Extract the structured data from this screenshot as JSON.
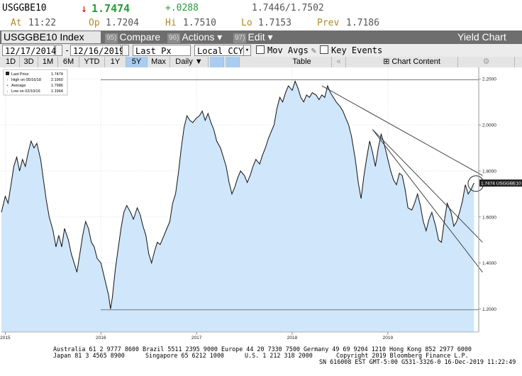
{
  "quote": {
    "ticker": "USGGBE10",
    "arrow": "↓",
    "last": "1.7474",
    "change": "+.0288",
    "bid_ask": "1.7446/1.7502",
    "at_label": "At",
    "time": "11:22",
    "op_label": "Op",
    "open": "1.7204",
    "hi_label": "Hi",
    "high": "1.7510",
    "lo_label": "Lo",
    "low": "1.7153",
    "prev_label": "Prev",
    "prev": "1.7186"
  },
  "titlebar": {
    "index_name": "USGGBE10 Index",
    "compare_num": "95)",
    "compare": "Compare",
    "actions_num": "96)",
    "actions": "Actions ▾",
    "edit_num": "97)",
    "edit": "Edit ▾",
    "chart_title": "Yield Chart"
  },
  "controls": {
    "start_date": "12/17/2014",
    "dash": "-",
    "end_date": "12/16/2019",
    "price_field": "Last Px",
    "currency": "Local CCY",
    "mov_avgs": "Mov Avgs",
    "key_events": "Key Events"
  },
  "periods": {
    "items": [
      "1D",
      "3D",
      "1M",
      "6M",
      "YTD",
      "1Y",
      "5Y",
      "Max",
      "Daily ▼"
    ],
    "active": "5Y",
    "table": "Table",
    "chart_content": "Chart Content"
  },
  "legend": {
    "last_price": "Last Price",
    "last_price_val": "1.7474",
    "high": "High on 05/16/18",
    "high_val": "2.1960",
    "average": "Average",
    "average_val": "1.7986",
    "low": "Low on 02/10/16",
    "low_val": "1.1964"
  },
  "last_tag": "1.7474 USGGBE10",
  "colors": {
    "area_fill": "#cfe6fb",
    "line": "#111111",
    "accent_red": "#e00000",
    "accent_green": "#2a9a3a",
    "header_gray": "#6e6e6e",
    "active_blue": "#a9cdf0"
  },
  "chart_data": {
    "type": "area",
    "series": [
      {
        "values": [
          [
            2014.96,
            1.62
          ],
          [
            2015.0,
            1.69
          ],
          [
            2015.03,
            1.66
          ],
          [
            2015.06,
            1.74
          ],
          [
            2015.09,
            1.82
          ],
          [
            2015.12,
            1.86
          ],
          [
            2015.15,
            1.8
          ],
          [
            2015.18,
            1.85
          ],
          [
            2015.21,
            1.82
          ],
          [
            2015.24,
            1.88
          ],
          [
            2015.27,
            1.93
          ],
          [
            2015.3,
            1.9
          ],
          [
            2015.33,
            1.92
          ],
          [
            2015.37,
            1.85
          ],
          [
            2015.4,
            1.76
          ],
          [
            2015.43,
            1.67
          ],
          [
            2015.46,
            1.6
          ],
          [
            2015.5,
            1.54
          ],
          [
            2015.53,
            1.47
          ],
          [
            2015.56,
            1.52
          ],
          [
            2015.59,
            1.47
          ],
          [
            2015.62,
            1.55
          ],
          [
            2015.66,
            1.5
          ],
          [
            2015.69,
            1.44
          ],
          [
            2015.72,
            1.4
          ],
          [
            2015.75,
            1.36
          ],
          [
            2015.78,
            1.44
          ],
          [
            2015.81,
            1.52
          ],
          [
            2015.84,
            1.58
          ],
          [
            2015.87,
            1.55
          ],
          [
            2015.9,
            1.49
          ],
          [
            2015.93,
            1.47
          ],
          [
            2015.96,
            1.42
          ],
          [
            2016.0,
            1.4
          ],
          [
            2016.04,
            1.33
          ],
          [
            2016.08,
            1.26
          ],
          [
            2016.1,
            1.2
          ],
          [
            2016.12,
            1.25
          ],
          [
            2016.15,
            1.37
          ],
          [
            2016.18,
            1.46
          ],
          [
            2016.21,
            1.55
          ],
          [
            2016.24,
            1.62
          ],
          [
            2016.27,
            1.65
          ],
          [
            2016.31,
            1.62
          ],
          [
            2016.34,
            1.59
          ],
          [
            2016.38,
            1.64
          ],
          [
            2016.41,
            1.61
          ],
          [
            2016.44,
            1.56
          ],
          [
            2016.47,
            1.52
          ],
          [
            2016.5,
            1.44
          ],
          [
            2016.53,
            1.4
          ],
          [
            2016.56,
            1.45
          ],
          [
            2016.59,
            1.49
          ],
          [
            2016.62,
            1.48
          ],
          [
            2016.66,
            1.52
          ],
          [
            2016.69,
            1.55
          ],
          [
            2016.72,
            1.58
          ],
          [
            2016.75,
            1.66
          ],
          [
            2016.78,
            1.7
          ],
          [
            2016.81,
            1.79
          ],
          [
            2016.84,
            1.9
          ],
          [
            2016.87,
            1.99
          ],
          [
            2016.9,
            2.04
          ],
          [
            2016.93,
            2.02
          ],
          [
            2016.96,
            2.01
          ],
          [
            2017.0,
            2.03
          ],
          [
            2017.03,
            2.04
          ],
          [
            2017.06,
            2.06
          ],
          [
            2017.09,
            2.02
          ],
          [
            2017.12,
            2.05
          ],
          [
            2017.15,
            2.01
          ],
          [
            2017.18,
            1.98
          ],
          [
            2017.21,
            1.93
          ],
          [
            2017.25,
            1.9
          ],
          [
            2017.28,
            1.86
          ],
          [
            2017.31,
            1.82
          ],
          [
            2017.34,
            1.75
          ],
          [
            2017.37,
            1.7
          ],
          [
            2017.4,
            1.73
          ],
          [
            2017.43,
            1.77
          ],
          [
            2017.46,
            1.8
          ],
          [
            2017.5,
            1.78
          ],
          [
            2017.53,
            1.75
          ],
          [
            2017.56,
            1.78
          ],
          [
            2017.59,
            1.82
          ],
          [
            2017.62,
            1.85
          ],
          [
            2017.66,
            1.83
          ],
          [
            2017.69,
            1.87
          ],
          [
            2017.72,
            1.9
          ],
          [
            2017.75,
            1.94
          ],
          [
            2017.78,
            1.97
          ],
          [
            2017.81,
            2.0
          ],
          [
            2017.84,
            2.07
          ],
          [
            2017.87,
            2.12
          ],
          [
            2017.9,
            2.1
          ],
          [
            2017.93,
            2.14
          ],
          [
            2017.96,
            2.17
          ],
          [
            2018.0,
            2.15
          ],
          [
            2018.03,
            2.19
          ],
          [
            2018.06,
            2.16
          ],
          [
            2018.09,
            2.12
          ],
          [
            2018.12,
            2.1
          ],
          [
            2018.15,
            2.13
          ],
          [
            2018.18,
            2.12
          ],
          [
            2018.21,
            2.14
          ],
          [
            2018.25,
            2.13
          ],
          [
            2018.28,
            2.11
          ],
          [
            2018.31,
            2.13
          ],
          [
            2018.34,
            2.12
          ],
          [
            2018.37,
            2.17
          ],
          [
            2018.4,
            2.14
          ],
          [
            2018.43,
            2.12
          ],
          [
            2018.46,
            2.1
          ],
          [
            2018.5,
            2.08
          ],
          [
            2018.53,
            2.06
          ],
          [
            2018.56,
            2.03
          ],
          [
            2018.59,
            2.0
          ],
          [
            2018.62,
            1.95
          ],
          [
            2018.66,
            1.85
          ],
          [
            2018.69,
            1.75
          ],
          [
            2018.72,
            1.68
          ],
          [
            2018.75,
            1.78
          ],
          [
            2018.78,
            1.86
          ],
          [
            2018.81,
            1.93
          ],
          [
            2018.84,
            1.88
          ],
          [
            2018.87,
            1.82
          ],
          [
            2018.9,
            1.9
          ],
          [
            2018.93,
            1.96
          ],
          [
            2018.96,
            1.92
          ],
          [
            2019.0,
            1.85
          ],
          [
            2019.03,
            1.8
          ],
          [
            2019.06,
            1.76
          ],
          [
            2019.09,
            1.74
          ],
          [
            2019.12,
            1.79
          ],
          [
            2019.15,
            1.78
          ],
          [
            2019.18,
            1.72
          ],
          [
            2019.21,
            1.64
          ],
          [
            2019.25,
            1.63
          ],
          [
            2019.28,
            1.66
          ],
          [
            2019.31,
            1.7
          ],
          [
            2019.34,
            1.65
          ],
          [
            2019.37,
            1.58
          ],
          [
            2019.4,
            1.54
          ],
          [
            2019.43,
            1.59
          ],
          [
            2019.46,
            1.62
          ],
          [
            2019.5,
            1.56
          ],
          [
            2019.53,
            1.5
          ],
          [
            2019.56,
            1.49
          ],
          [
            2019.59,
            1.58
          ],
          [
            2019.62,
            1.66
          ],
          [
            2019.66,
            1.62
          ],
          [
            2019.69,
            1.56
          ],
          [
            2019.72,
            1.58
          ],
          [
            2019.75,
            1.62
          ],
          [
            2019.78,
            1.67
          ],
          [
            2019.81,
            1.74
          ],
          [
            2019.84,
            1.7
          ],
          [
            2019.87,
            1.72
          ],
          [
            2019.9,
            1.7474
          ]
        ]
      }
    ],
    "x_ticks": [
      "2015",
      "2016",
      "2017",
      "2018",
      "2019"
    ],
    "x_tick_pos": [
      2015.0,
      2016.0,
      2017.0,
      2018.0,
      2019.0
    ],
    "y_ticks": [
      "1.2000",
      "1.4000",
      "1.6000",
      "1.8000",
      "2.0000",
      "2.2000"
    ],
    "y_tick_vals": [
      1.2,
      1.4,
      1.6,
      1.8,
      2.0,
      2.2
    ],
    "xlim": [
      2014.96,
      2019.95
    ],
    "ylim": [
      1.1,
      2.25
    ],
    "hlines": [
      2.196,
      1.1964
    ],
    "trendlines": [
      [
        [
          2018.31,
          2.17
        ],
        [
          2019.99,
          1.78
        ]
      ],
      [
        [
          2018.84,
          1.98
        ],
        [
          2019.99,
          1.49
        ]
      ],
      [
        [
          2018.84,
          1.98
        ],
        [
          2019.99,
          1.36
        ]
      ]
    ],
    "highlight_circle": [
      2019.92,
      1.745
    ],
    "grid": true,
    "legend_position": "top-left"
  },
  "footer": {
    "line1": "Australia 61 2 9777 8600 Brazil 5511 2395 9000 Europe 44 20 7330 7500 Germany 49 69 9204 1210 Hong Kong 852 2977 6000",
    "line2a": "Japan 81 3 4565 8900",
    "line2b": "Singapore 65 6212 1000",
    "line2c": "U.S. 1 212 318 2000",
    "line2d": "Copyright 2019 Bloomberg Finance L.P.",
    "line3": "SN 616008 EST  GMT-5:00 G531-3326-0 16-Dec-2019 11:22:49"
  }
}
